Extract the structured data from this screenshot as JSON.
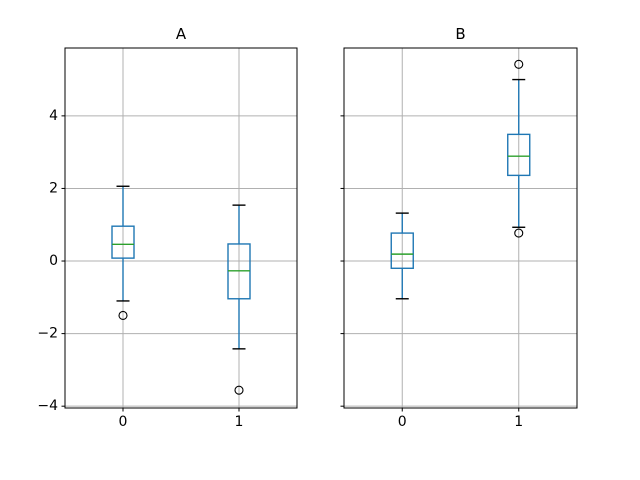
{
  "figure": {
    "background": "#ffffff"
  },
  "chart_data": {
    "type": "boxplot",
    "title": "",
    "xlim": [
      -0.5,
      1.5
    ],
    "ylim": [
      -4.05,
      5.87
    ],
    "grid": true,
    "yticks": {
      "values": [
        4,
        2,
        0,
        -2,
        -4
      ],
      "labels": [
        "4",
        "2",
        "0",
        "−2",
        "−4"
      ]
    },
    "colors": {
      "box": "#1f77b4",
      "whisker": "#1f77b4",
      "cap": "#000000",
      "median": "#2ca02c",
      "flier_edge": "#000000",
      "grid": "#b0b0b0",
      "spine": "#000000",
      "text": "#000000"
    },
    "subplots": [
      {
        "title": "A",
        "show_ytick_labels": true,
        "xticks": {
          "values": [
            0,
            1
          ],
          "labels": [
            "0",
            "1"
          ]
        },
        "boxes": [
          {
            "x": 0,
            "whislo": -1.1,
            "q1": 0.08,
            "med": 0.46,
            "q3": 0.96,
            "whishi": 2.06,
            "fliers": [
              -1.5
            ]
          },
          {
            "x": 1,
            "whislo": -2.42,
            "q1": -1.04,
            "med": -0.27,
            "q3": 0.47,
            "whishi": 1.54,
            "fliers": [
              -3.56
            ]
          }
        ]
      },
      {
        "title": "B",
        "show_ytick_labels": false,
        "xticks": {
          "values": [
            0,
            1
          ],
          "labels": [
            "0",
            "1"
          ]
        },
        "boxes": [
          {
            "x": 0,
            "whislo": -1.04,
            "q1": -0.2,
            "med": 0.19,
            "q3": 0.77,
            "whishi": 1.32,
            "fliers": []
          },
          {
            "x": 1,
            "whislo": 0.93,
            "q1": 2.36,
            "med": 2.89,
            "q3": 3.49,
            "whishi": 5.0,
            "fliers": [
              5.42,
              0.77
            ]
          }
        ]
      }
    ]
  }
}
